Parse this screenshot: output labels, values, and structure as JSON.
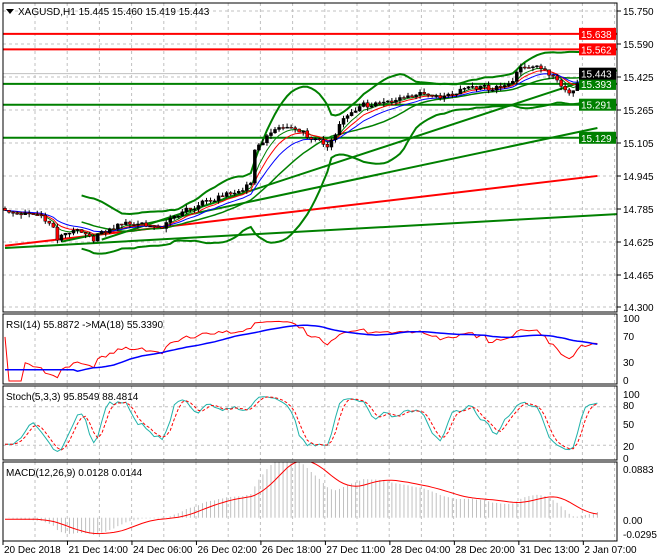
{
  "header": {
    "menu_icon": "triangle-down-icon",
    "symbol": "XAGUSD,H1",
    "open": "15.445",
    "high": "15.460",
    "low": "15.419",
    "close": "15.443"
  },
  "chart_data": {
    "type": "candlestick",
    "symbol": "XAGUSD",
    "timeframe": "H1",
    "price_axis_ticks": [
      "15.750",
      "15.590",
      "15.425",
      "15.265",
      "15.105",
      "14.945",
      "14.785",
      "14.625",
      "14.465",
      "14.300"
    ],
    "price_range": [
      14.3,
      15.75
    ],
    "time_labels": [
      "20 Dec 2018",
      "21 Dec 14:00",
      "24 Dec 06:00",
      "26 Dec 02:00",
      "26 Dec 18:00",
      "27 Dec 11:00",
      "28 Dec 04:00",
      "28 Dec 20:00",
      "31 Dec 13:00",
      "2 Jan 07:00"
    ],
    "bars_per_time_label": 16,
    "bar_count": 148,
    "close_anchors": [
      [
        0,
        14.77
      ],
      [
        8,
        14.76
      ],
      [
        12,
        14.68
      ],
      [
        13,
        14.62
      ],
      [
        17,
        14.69
      ],
      [
        22,
        14.64
      ],
      [
        25,
        14.66
      ],
      [
        30,
        14.71
      ],
      [
        34,
        14.72
      ],
      [
        39,
        14.68
      ],
      [
        41,
        14.72
      ],
      [
        45,
        14.77
      ],
      [
        49,
        14.82
      ],
      [
        54,
        14.84
      ],
      [
        59,
        14.86
      ],
      [
        61,
        14.92
      ],
      [
        62,
        15.07
      ],
      [
        64,
        15.12
      ],
      [
        66,
        15.17
      ],
      [
        71,
        15.17
      ],
      [
        74,
        15.15
      ],
      [
        78,
        15.12
      ],
      [
        80,
        15.1
      ],
      [
        84,
        15.21
      ],
      [
        89,
        15.29
      ],
      [
        94,
        15.31
      ],
      [
        99,
        15.32
      ],
      [
        104,
        15.34
      ],
      [
        109,
        15.34
      ],
      [
        114,
        15.36
      ],
      [
        119,
        15.37
      ],
      [
        124,
        15.39
      ],
      [
        126,
        15.41
      ],
      [
        128,
        15.47
      ],
      [
        131,
        15.47
      ],
      [
        133,
        15.46
      ],
      [
        136,
        15.45
      ],
      [
        138,
        15.39
      ],
      [
        140,
        15.36
      ],
      [
        143,
        15.41
      ],
      [
        147,
        15.443
      ]
    ],
    "current_price": {
      "value": 15.443,
      "label": "15.443",
      "color": "#000000"
    },
    "levels": [
      {
        "value": 15.638,
        "label": "15.638",
        "color": "#ff0000"
      },
      {
        "value": 15.562,
        "label": "15.562",
        "color": "#ff0000"
      },
      {
        "value": 15.393,
        "label": "15.393",
        "color": "#008000"
      },
      {
        "value": 15.291,
        "label": "15.291",
        "color": "#008000"
      },
      {
        "value": 15.129,
        "label": "15.129",
        "color": "#008000"
      }
    ],
    "trendlines": [
      {
        "from": [
          0,
          14.589
        ],
        "to": [
          152,
          14.755
        ],
        "color": "#008000"
      },
      {
        "from": [
          0,
          14.6
        ],
        "to": [
          147,
          14.942
        ],
        "color": "#ff0000"
      },
      {
        "from": [
          14,
          14.62
        ],
        "to": [
          147,
          15.177
        ],
        "color": "#008000"
      },
      {
        "from": [
          24,
          14.63
        ],
        "to": [
          152,
          15.46
        ],
        "color": "#008000"
      }
    ],
    "indicators": {
      "rsi": {
        "label": "RSI(14) 55.8872  ->MA(18) 55.3390",
        "ticks": [
          "100",
          "70",
          "30",
          "0"
        ],
        "range": [
          0,
          100
        ],
        "line_color": "#ff0000",
        "ma_color": "#0000ff"
      },
      "stoch": {
        "label": "Stoch(5,3,3) 95.8549 88.4814",
        "ticks": [
          "100",
          "80",
          "50",
          "20",
          "0"
        ],
        "range": [
          0,
          100
        ],
        "main_color": "#20b2aa",
        "signal_color": "#ff0000"
      },
      "macd": {
        "label": "MACD(12,26,9) 0.0128 0.0144",
        "ticks": [
          "0.0883",
          "0.00",
          "-0.0295"
        ],
        "range": [
          -0.0295,
          0.0883
        ],
        "hist_color": "#c0c0c0",
        "signal_color": "#ff0000"
      }
    },
    "colors": {
      "bull": "#000000",
      "bear": "#ff0000",
      "bands": "#008000",
      "ma_fast": "#ff0000",
      "ma_slow": "#0000ff"
    }
  }
}
